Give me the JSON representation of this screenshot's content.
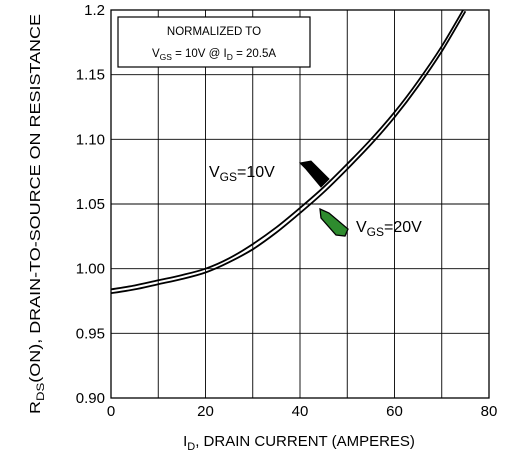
{
  "chart_data": {
    "type": "line",
    "title": "",
    "xlabel": {
      "main": "I",
      "sub": "D",
      "rest": ", DRAIN CURRENT (AMPERES)"
    },
    "ylabel": {
      "main": "R",
      "sub": "DS",
      "rest": "(ON), DRAIN-TO-SOURCE ON RESISTANCE"
    },
    "xlim": [
      0,
      80
    ],
    "ylim": [
      0.9,
      1.2
    ],
    "xticks": [
      0,
      20,
      40,
      60,
      80
    ],
    "xtick_labels": [
      "0",
      "20",
      "40",
      "60",
      "80"
    ],
    "yticks": [
      0.9,
      0.95,
      1.0,
      1.05,
      1.1,
      1.15,
      1.2
    ],
    "ytick_labels": [
      "0.90",
      "0.95",
      "1.00",
      "1.05",
      "1.10",
      "1.15",
      "1.2"
    ],
    "grid": true,
    "note": {
      "line1": "NORMALIZED TO",
      "vgs_main": "V",
      "vgs_sub": "GS",
      "vgs_rest": " = 10V  @ I",
      "id_sub": "D",
      "id_rest": " = 20.5A"
    },
    "series": [
      {
        "name": "VGS=10V",
        "label_main": "V",
        "label_sub": "GS",
        "label_rest": "=10V",
        "arrow_color": "#000000",
        "x": [
          0,
          5,
          10,
          15,
          20,
          25,
          30,
          35,
          40,
          45,
          50,
          55,
          60,
          65,
          70,
          75
        ],
        "y": [
          0.984,
          0.987,
          0.991,
          0.995,
          1.0,
          1.008,
          1.019,
          1.032,
          1.047,
          1.063,
          1.081,
          1.1,
          1.121,
          1.145,
          1.172,
          1.203
        ]
      },
      {
        "name": "VGS=20V",
        "label_main": "V",
        "label_sub": "GS",
        "label_rest": "=20V",
        "arrow_color": "#2e8b2e",
        "x": [
          0,
          5,
          10,
          15,
          20,
          25,
          30,
          35,
          40,
          45,
          50,
          55,
          60,
          65,
          70,
          75
        ],
        "y": [
          0.981,
          0.984,
          0.988,
          0.992,
          0.997,
          1.005,
          1.015,
          1.028,
          1.043,
          1.059,
          1.077,
          1.096,
          1.117,
          1.141,
          1.168,
          1.199
        ]
      }
    ]
  }
}
